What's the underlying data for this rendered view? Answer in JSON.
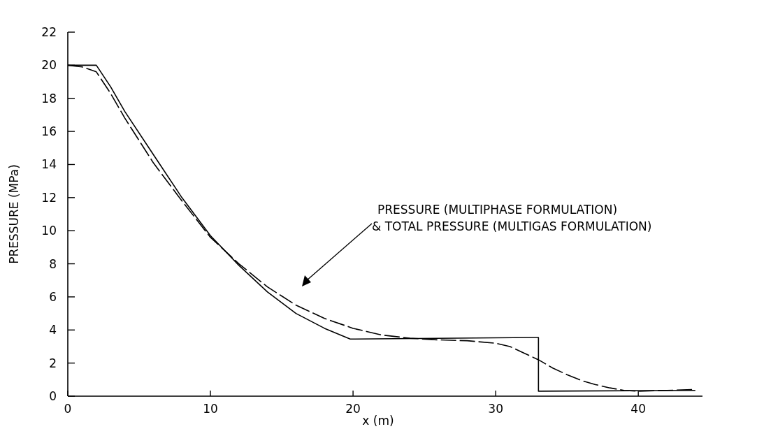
{
  "chart_data": {
    "type": "line",
    "xlabel": "x (m)",
    "ylabel": "PRESSURE (MPa)",
    "xlim": [
      0,
      44.5
    ],
    "ylim": [
      0,
      22
    ],
    "xticks": [
      0,
      10,
      20,
      30,
      40
    ],
    "yticks": [
      0,
      2,
      4,
      6,
      8,
      10,
      12,
      14,
      16,
      18,
      20,
      22
    ],
    "grid": false,
    "marker": "none",
    "series": [
      {
        "color": "#000000",
        "line_style": "solid",
        "x": [
          0,
          2,
          3,
          4,
          6,
          8,
          10,
          12,
          14,
          16,
          18,
          19.8,
          33,
          33,
          44
        ],
        "values": [
          20,
          20,
          18.7,
          17.2,
          14.6,
          12,
          9.7,
          7.9,
          6.3,
          5,
          4.1,
          3.45,
          3.55,
          0.3,
          0.35
        ]
      },
      {
        "color": "#000000",
        "line_style": "dashed",
        "x": [
          0,
          1,
          2,
          3,
          4,
          6,
          8,
          10,
          12,
          14,
          16,
          18,
          20,
          22,
          24,
          26,
          28,
          30,
          31,
          32,
          33,
          34,
          35,
          36,
          37,
          38,
          39,
          40,
          42,
          44
        ],
        "values": [
          20,
          19.9,
          19.6,
          18.3,
          16.8,
          14.1,
          11.8,
          9.6,
          8,
          6.6,
          5.5,
          4.7,
          4.1,
          3.7,
          3.5,
          3.4,
          3.35,
          3.2,
          3,
          2.6,
          2.2,
          1.7,
          1.3,
          0.95,
          0.7,
          0.5,
          0.35,
          0.3,
          0.35,
          0.4
        ]
      }
    ],
    "annotations": [
      "PRESSURE (MULTIPHASE FORMULATION)\n& TOTAL PRESSURE (MULTIGAS FORMULATION)"
    ]
  }
}
